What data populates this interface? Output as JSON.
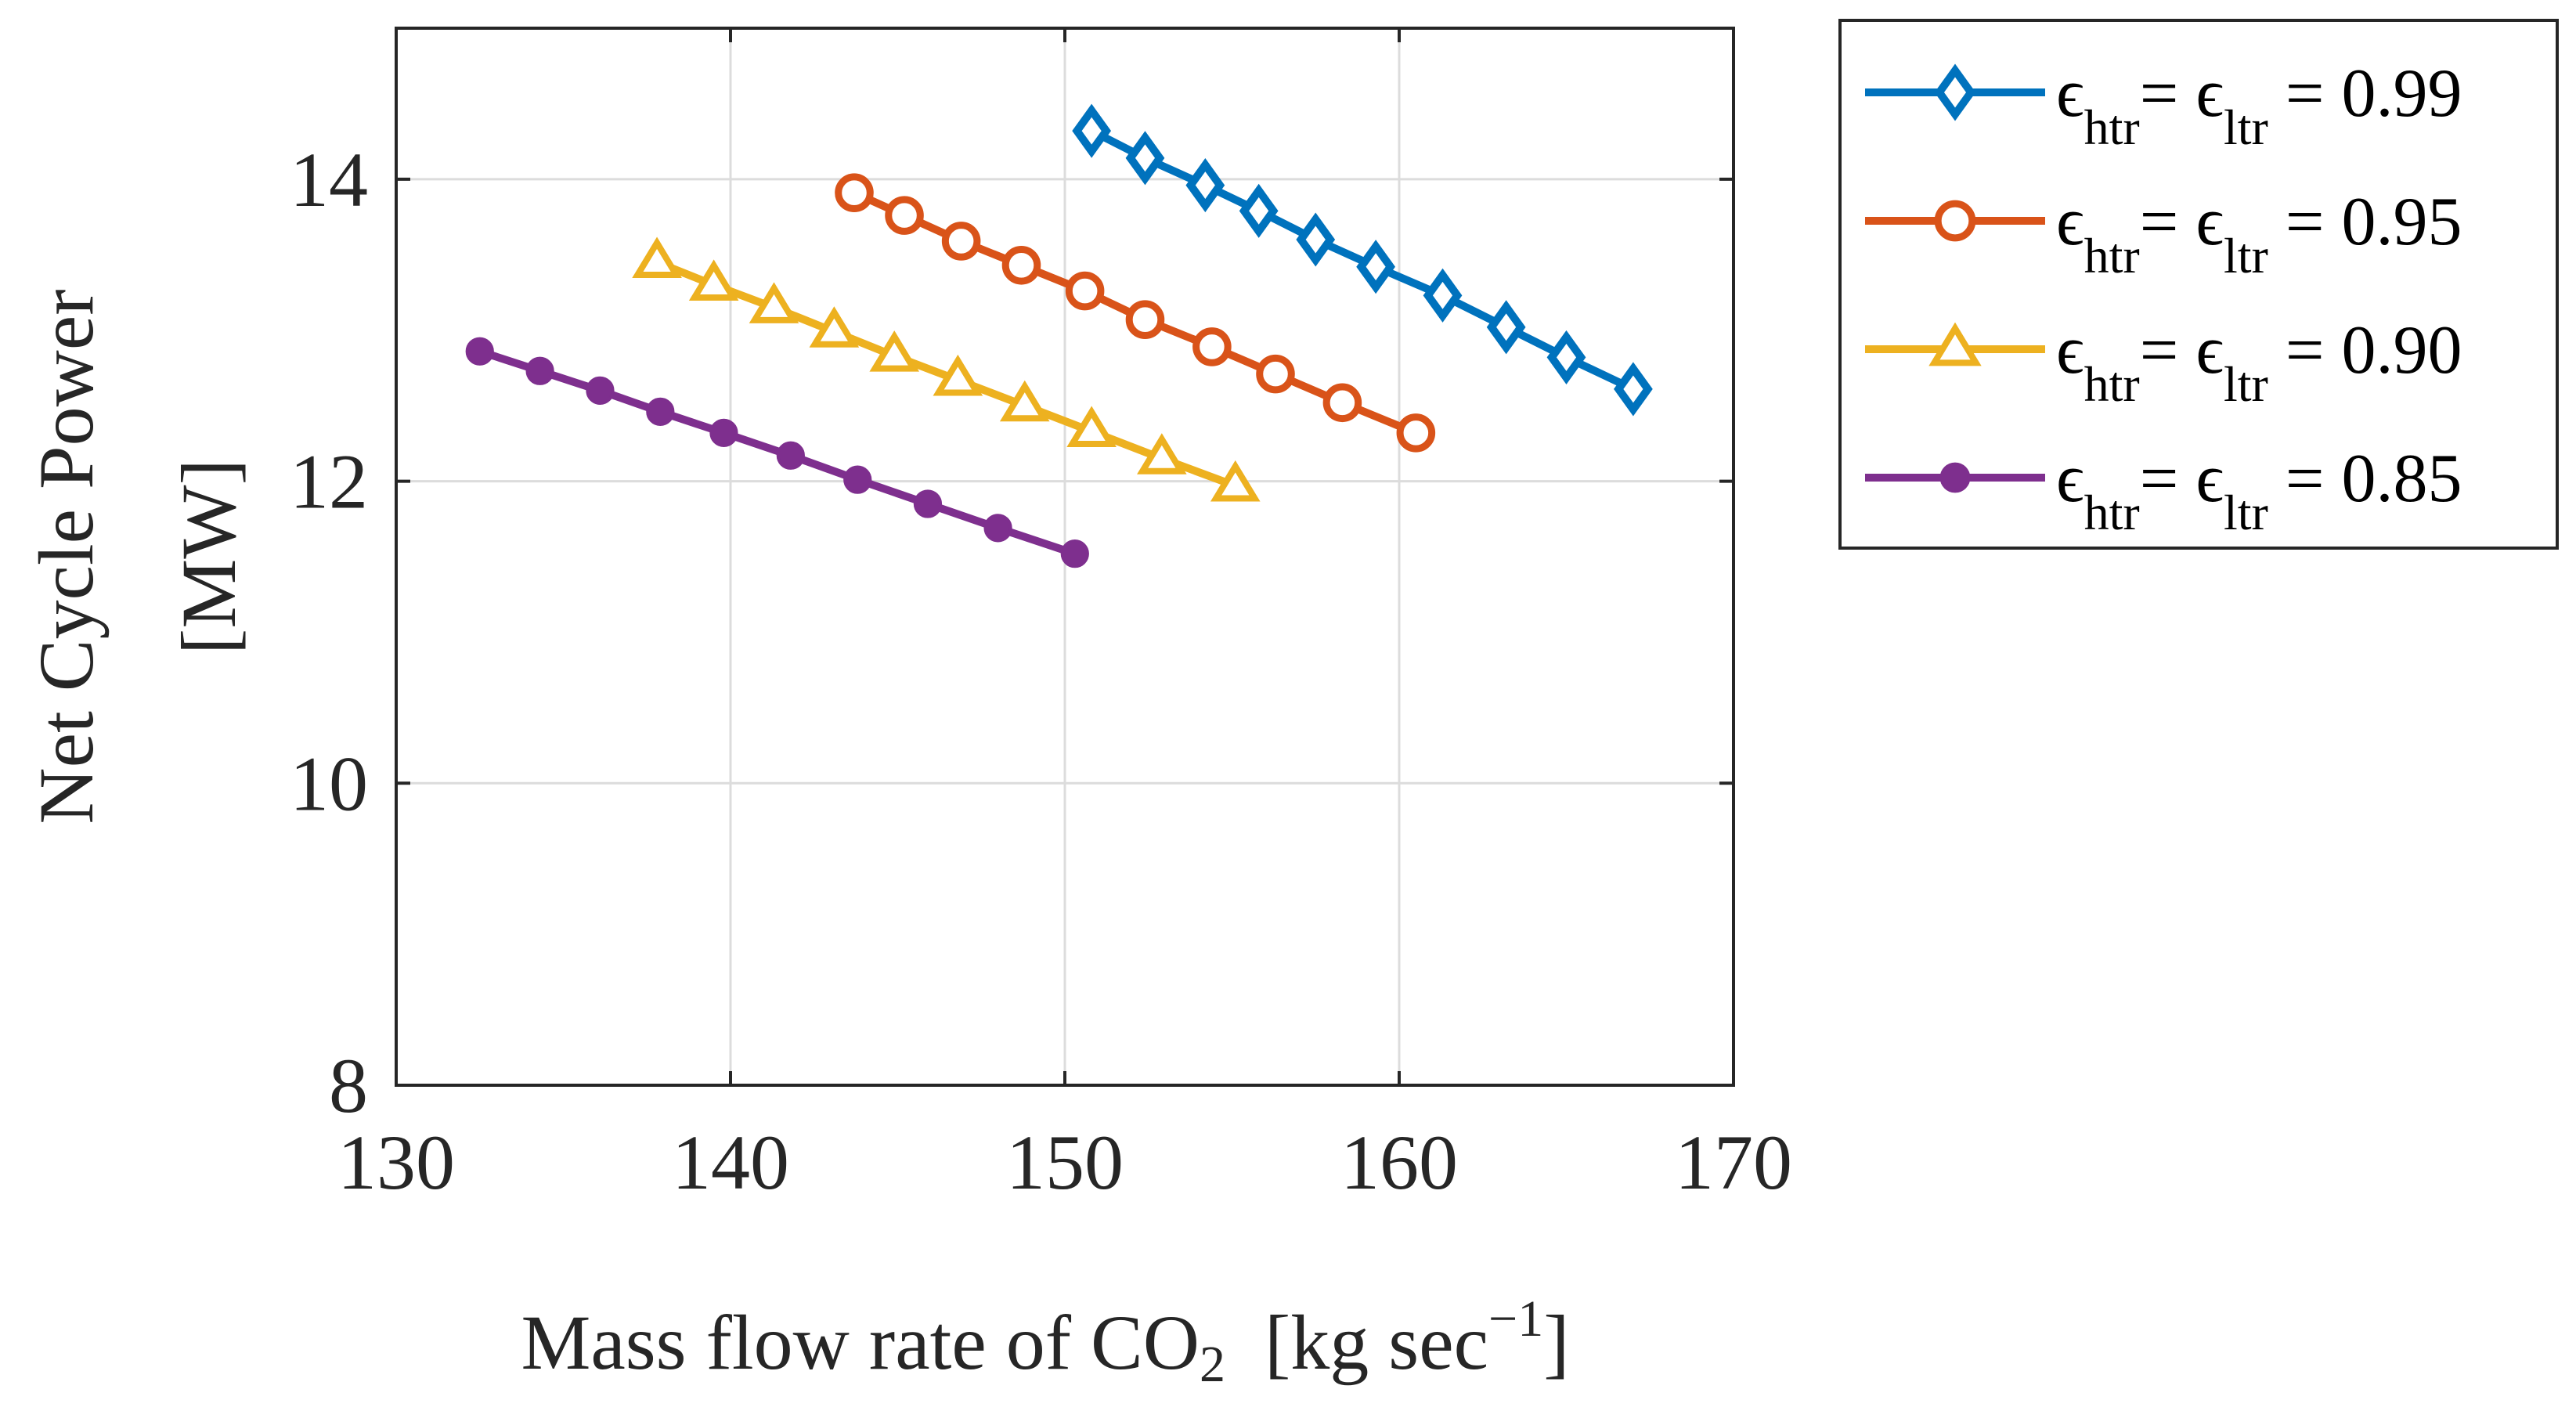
{
  "chart_data": {
    "type": "line",
    "xlabel": {
      "main": "Mass flow rate of CO",
      "subscript": "2",
      "unit_open": "[kg sec",
      "unit_sup": "−1",
      "unit_close": "]"
    },
    "ylabel": {
      "line1": "Net Cycle Power",
      "line2": "[MW]"
    },
    "xlim": [
      130,
      170
    ],
    "ylim": [
      8,
      15
    ],
    "xticks": [
      130,
      140,
      150,
      160,
      170
    ],
    "yticks": [
      8,
      10,
      12,
      14
    ],
    "xtick_labels": [
      "130",
      "140",
      "150",
      "160",
      "170"
    ],
    "ytick_labels": [
      "8",
      "10",
      "12",
      "14"
    ],
    "grid": true,
    "legend_position": "outside-top-right",
    "series": [
      {
        "name": "ε_htr = ε_ltr = 0.99",
        "label_parts": {
          "symbol": "ϵ",
          "sub1": "htr",
          "eq": "= ",
          "sub2": "ltr",
          "value": " = 0.99"
        },
        "color": "#0072BD",
        "marker": "diamond",
        "x": [
          150.8,
          152.4,
          154.2,
          155.8,
          157.5,
          159.3,
          161.3,
          163.2,
          165.0,
          167.0
        ],
        "y": [
          14.32,
          14.14,
          13.96,
          13.79,
          13.6,
          13.42,
          13.23,
          13.02,
          12.82,
          12.61
        ]
      },
      {
        "name": "ε_htr = ε_ltr = 0.95",
        "label_parts": {
          "symbol": "ϵ",
          "sub1": "htr",
          "eq": "= ",
          "sub2": "ltr",
          "value": " = 0.95"
        },
        "color": "#D95319",
        "marker": "circle",
        "x": [
          143.7,
          145.2,
          146.9,
          148.7,
          150.6,
          152.4,
          154.4,
          156.3,
          158.3,
          160.5
        ],
        "y": [
          13.91,
          13.76,
          13.59,
          13.43,
          13.26,
          13.07,
          12.89,
          12.71,
          12.52,
          12.32
        ]
      },
      {
        "name": "ε_htr = ε_ltr = 0.90",
        "label_parts": {
          "symbol": "ϵ",
          "sub1": "htr",
          "eq": "= ",
          "sub2": "ltr",
          "value": " = 0.90"
        },
        "color": "#EDB120",
        "marker": "triangle",
        "x": [
          137.8,
          139.5,
          141.3,
          143.1,
          144.9,
          146.8,
          148.8,
          150.8,
          152.9,
          155.1
        ],
        "y": [
          13.45,
          13.3,
          13.15,
          12.99,
          12.83,
          12.67,
          12.5,
          12.33,
          12.15,
          11.97
        ]
      },
      {
        "name": "ε_htr = ε_ltr = 0.85",
        "label_parts": {
          "symbol": "ϵ",
          "sub1": "htr",
          "eq": "= ",
          "sub2": "ltr",
          "value": " = 0.85"
        },
        "color": "#7E2F8E",
        "marker": "filled-circle",
        "x": [
          132.5,
          134.3,
          136.1,
          137.9,
          139.8,
          141.8,
          143.8,
          145.9,
          148.0,
          150.3
        ],
        "y": [
          12.86,
          12.73,
          12.6,
          12.46,
          12.32,
          12.17,
          12.01,
          11.85,
          11.69,
          11.52
        ]
      }
    ]
  }
}
